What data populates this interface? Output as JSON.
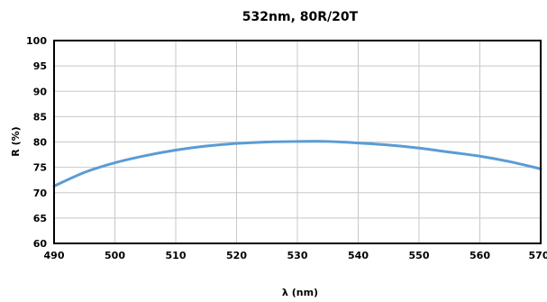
{
  "chart_data": {
    "type": "line",
    "title": "532nm, 80R/20T",
    "xlabel": "λ (nm)",
    "ylabel": "R (%)",
    "xlim": [
      490,
      570
    ],
    "ylim": [
      60,
      100
    ],
    "xticks": [
      490,
      500,
      510,
      520,
      530,
      540,
      550,
      560,
      570
    ],
    "yticks": [
      60,
      65,
      70,
      75,
      80,
      85,
      90,
      95,
      100
    ],
    "grid": true,
    "series_color": "#5b9bd5",
    "series": [
      {
        "x": [
          490,
          495,
          500,
          505,
          510,
          515,
          520,
          525,
          530,
          535,
          540,
          545,
          550,
          555,
          560,
          565,
          570
        ],
        "values": [
          71.3,
          74.0,
          75.9,
          77.3,
          78.4,
          79.2,
          79.7,
          80.0,
          80.1,
          80.1,
          79.8,
          79.4,
          78.8,
          78.0,
          77.2,
          76.1,
          74.7
        ]
      }
    ]
  }
}
